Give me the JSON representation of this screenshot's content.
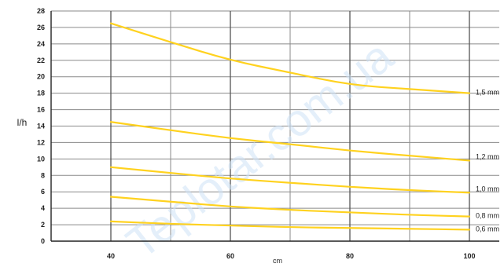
{
  "chart_data": {
    "type": "line",
    "xlabel": "cm",
    "ylabel": "l/h",
    "xlim": [
      30,
      105
    ],
    "ylim": [
      0,
      28
    ],
    "x_ticks": [
      40,
      60,
      80,
      100
    ],
    "y_ticks": [
      0,
      2,
      4,
      6,
      8,
      10,
      12,
      14,
      16,
      18,
      20,
      22,
      24,
      26,
      28
    ],
    "grid": true,
    "line_color": "#ffd21f",
    "watermark": "Teplotar.com.ua",
    "series": [
      {
        "name": "1,5 mm",
        "x": [
          40,
          50,
          60,
          70,
          80,
          90,
          100
        ],
        "y": [
          26.5,
          24.2,
          22.0,
          20.5,
          19.0,
          18.5,
          18.0
        ]
      },
      {
        "name": "1,2  mm",
        "x": [
          40,
          50,
          60,
          70,
          80,
          90,
          100
        ],
        "y": [
          14.5,
          13.5,
          12.5,
          11.8,
          11.0,
          10.4,
          9.8
        ]
      },
      {
        "name": "1,0  mm",
        "x": [
          40,
          50,
          60,
          70,
          80,
          90,
          100
        ],
        "y": [
          9.0,
          8.3,
          7.6,
          7.1,
          6.6,
          6.2,
          5.9
        ]
      },
      {
        "name": "0,8 mm",
        "x": [
          40,
          50,
          60,
          70,
          80,
          90,
          100
        ],
        "y": [
          5.4,
          4.8,
          4.2,
          3.8,
          3.5,
          3.2,
          3.0
        ]
      },
      {
        "name": "0,6 mm",
        "x": [
          40,
          50,
          60,
          70,
          80,
          90,
          100
        ],
        "y": [
          2.4,
          2.1,
          1.9,
          1.7,
          1.6,
          1.5,
          1.4
        ]
      }
    ]
  }
}
